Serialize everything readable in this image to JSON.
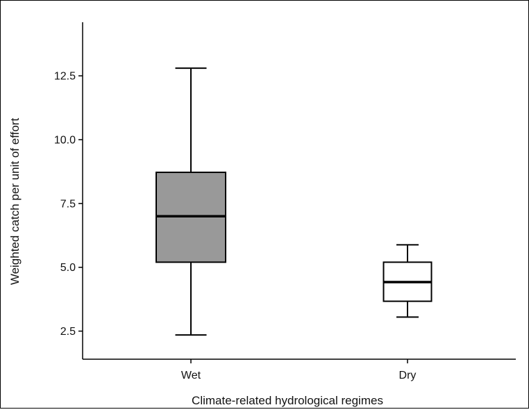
{
  "chart_data": {
    "type": "box",
    "title": "",
    "xlabel": "Climate-related hydrological regimes",
    "ylabel": "Weighted catch per unit of effort",
    "ylim": [
      1.4,
      14.6
    ],
    "yticks": [
      "2.5",
      "5.0",
      "7.5",
      "10.0",
      "12.5"
    ],
    "ytick_values": [
      2.5,
      5.0,
      7.5,
      10.0,
      12.5
    ],
    "categories": [
      "Wet",
      "Dry"
    ],
    "boxes": [
      {
        "category": "Wet",
        "min": 2.35,
        "q1": 5.2,
        "median": 7.0,
        "q3": 8.72,
        "max": 12.8,
        "fill": "#999999"
      },
      {
        "category": "Dry",
        "min": 3.05,
        "q1": 3.67,
        "median": 4.42,
        "q3": 5.2,
        "max": 5.88,
        "fill": "#ffffff"
      }
    ],
    "grid": false,
    "legend": "none"
  }
}
